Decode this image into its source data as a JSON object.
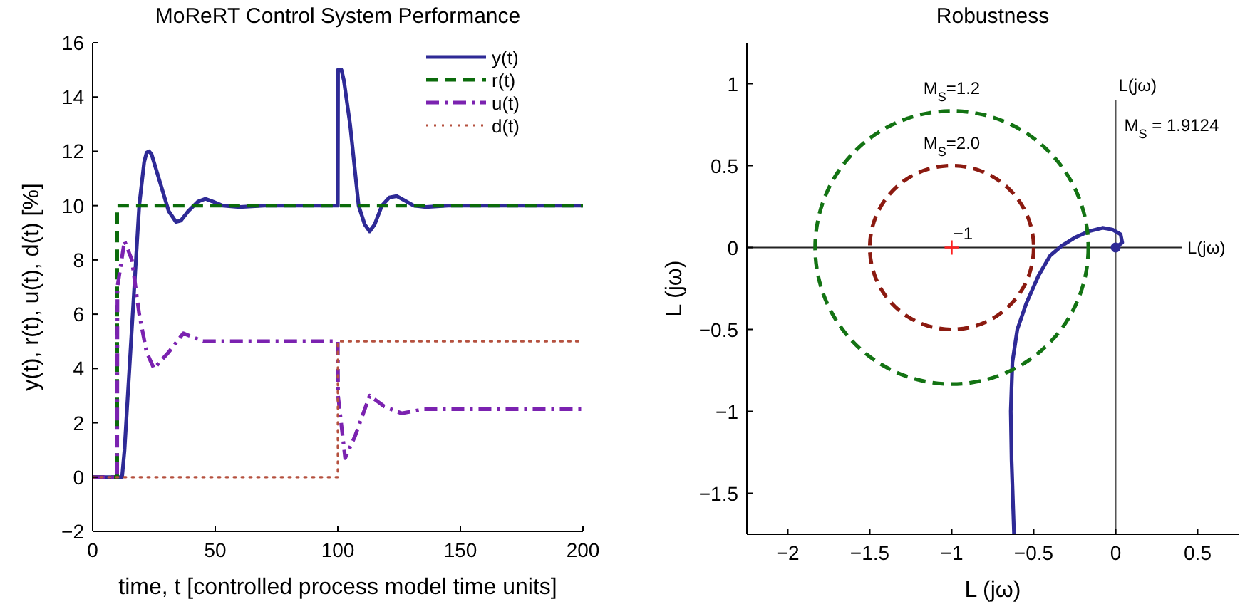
{
  "chart_data": [
    {
      "type": "line",
      "title": "MoReRT Control System Performance",
      "xlabel": "time, t [controlled process model time units]",
      "ylabel": "y(t), r(t), u(t), d(t) [%]",
      "xlim": [
        0,
        200
      ],
      "xticks": [
        0,
        50,
        100,
        150,
        200
      ],
      "ylim": [
        -2,
        16
      ],
      "yticks": [
        {
          "value": -2,
          "label": "−2"
        },
        0,
        2,
        4,
        6,
        8,
        10,
        12,
        14,
        16
      ],
      "grid": false,
      "legend": "top right",
      "series": [
        {
          "name": "y(t)",
          "color": "#2e2a96",
          "line_style": "solid",
          "x": [
            0,
            12,
            13,
            15,
            19,
            21,
            22,
            23,
            24,
            27,
            31,
            34,
            36,
            39,
            43,
            46,
            49,
            53,
            60,
            70,
            100,
            100.1,
            101.5,
            102.5,
            105,
            108.5,
            111,
            113,
            115,
            118,
            121,
            124,
            127,
            131,
            136,
            145,
            200
          ],
          "values": [
            0,
            0,
            1,
            4,
            10,
            11.6,
            11.95,
            12,
            11.9,
            11,
            9.8,
            9.4,
            9.45,
            9.8,
            10.15,
            10.25,
            10.15,
            10,
            9.95,
            10,
            10,
            15,
            15,
            14.6,
            13,
            10,
            9.3,
            9.05,
            9.3,
            10,
            10.3,
            10.35,
            10.2,
            10,
            9.95,
            10,
            10
          ]
        },
        {
          "name": "r(t)",
          "color": "#0b6b0b",
          "line_style": "dashed",
          "x": [
            0,
            10,
            10,
            200
          ],
          "values": [
            0,
            0,
            10,
            10
          ]
        },
        {
          "name": "u(t)",
          "color": "#7b22b0",
          "line_style": "dashdot",
          "x": [
            0,
            10,
            10.1,
            13,
            16,
            19,
            22,
            25,
            31,
            37,
            45,
            100,
            100.1,
            103,
            107,
            113,
            119,
            126,
            135,
            200
          ],
          "values": [
            0,
            0,
            7,
            8.7,
            8,
            6,
            4.6,
            4,
            4.6,
            5.3,
            5,
            5,
            3,
            0.7,
            1.5,
            3,
            2.6,
            2.35,
            2.5,
            2.5
          ]
        },
        {
          "name": "d(t)",
          "color": "#b5513f",
          "line_style": "dotted",
          "x": [
            0,
            100,
            100,
            200
          ],
          "values": [
            0,
            0,
            5,
            5
          ]
        }
      ]
    },
    {
      "type": "line",
      "title": "Robustness",
      "xlabel": "L (jω)",
      "ylabel": "L (jω)",
      "xlim": [
        -2.25,
        0.75
      ],
      "xticks": [
        {
          "value": -2,
          "label": "−2"
        },
        {
          "value": -1.5,
          "label": "−1.5"
        },
        {
          "value": -1,
          "label": "−1"
        },
        {
          "value": -0.5,
          "label": "−0.5"
        },
        0,
        0.5
      ],
      "ylim": [
        -1.75,
        1.25
      ],
      "yticks": [
        {
          "value": -1.5,
          "label": "−1.5"
        },
        {
          "value": -1,
          "label": "−1"
        },
        {
          "value": -0.5,
          "label": "−0.5"
        },
        0,
        0.5,
        1
      ],
      "grid": false,
      "legend": false,
      "ref_lines": [
        {
          "axis": "y",
          "value": 0,
          "label": "L(jω)",
          "color": "#222222"
        },
        {
          "axis": "x",
          "value": 0,
          "label": "L(jω)",
          "color": "#555555"
        }
      ],
      "annotations": [
        "M$_{S}$=1.2",
        "M$_{S}$=2.0",
        {
          "text": "−1",
          "x": -1,
          "y": 0
        },
        "M$_{S}$ = 1.9124"
      ],
      "series": [
        {
          "color": "#2e2a96",
          "line_style": "solid",
          "x": [
            0,
            0.04,
            0.03,
            -0.02,
            -0.08,
            -0.16,
            -0.25,
            -0.33,
            -0.4,
            -0.47,
            -0.545,
            -0.6,
            -0.63,
            -0.64,
            -0.635,
            -0.62
          ],
          "values": [
            0,
            0.03,
            0.08,
            0.11,
            0.12,
            0.1,
            0.06,
            0.01,
            -0.05,
            -0.17,
            -0.34,
            -0.5,
            -0.7,
            -1,
            -1.3,
            -1.75
          ]
        },
        {
          "type": "scatter",
          "color": "#2e2a96",
          "marker": "circle",
          "x": [
            0
          ],
          "values": [
            0
          ]
        },
        {
          "type": "scatter",
          "color": "#ff2020",
          "marker": "cross",
          "x": [
            -1
          ],
          "values": [
            0
          ]
        }
      ]
    }
  ]
}
